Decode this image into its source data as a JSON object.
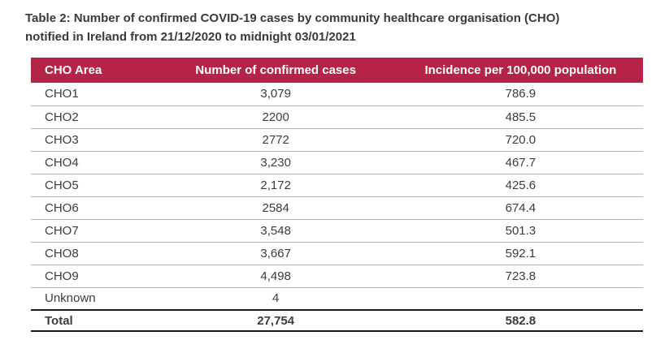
{
  "title": {
    "line1": "Table 2: Number of confirmed COVID-19 cases by community healthcare organisation (CHO)",
    "line2": "notified in Ireland from 21/12/2020 to midnight 03/01/2021"
  },
  "table": {
    "columns": [
      {
        "label": "CHO Area"
      },
      {
        "label": "Number of confirmed cases"
      },
      {
        "label": "Incidence per 100,000 population"
      }
    ],
    "rows": [
      {
        "area": "CHO1",
        "cases": "3,079",
        "incidence": "786.9"
      },
      {
        "area": "CHO2",
        "cases": "2200",
        "incidence": "485.5"
      },
      {
        "area": "CHO3",
        "cases": "2772",
        "incidence": "720.0"
      },
      {
        "area": "CHO4",
        "cases": "3,230",
        "incidence": "467.7"
      },
      {
        "area": "CHO5",
        "cases": "2,172",
        "incidence": "425.6"
      },
      {
        "area": "CHO6",
        "cases": "2584",
        "incidence": "674.4"
      },
      {
        "area": "CHO7",
        "cases": "3,548",
        "incidence": "501.3"
      },
      {
        "area": "CHO8",
        "cases": "3,667",
        "incidence": "592.1"
      },
      {
        "area": "CHO9",
        "cases": "4,498",
        "incidence": "723.8"
      },
      {
        "area": "Unknown",
        "cases": "4",
        "incidence": ""
      }
    ],
    "total_row": {
      "area": "Total",
      "cases": "27,754",
      "incidence": "582.8"
    }
  },
  "colors": {
    "header_background": "#B52346",
    "header_text": "#FFFFFF",
    "title_text": "#3A3A3A",
    "body_text": "#3C3C3C",
    "row_divider": "#B4B4B4",
    "total_border": "#1A1A1A",
    "page_background": "#FFFFFF"
  }
}
